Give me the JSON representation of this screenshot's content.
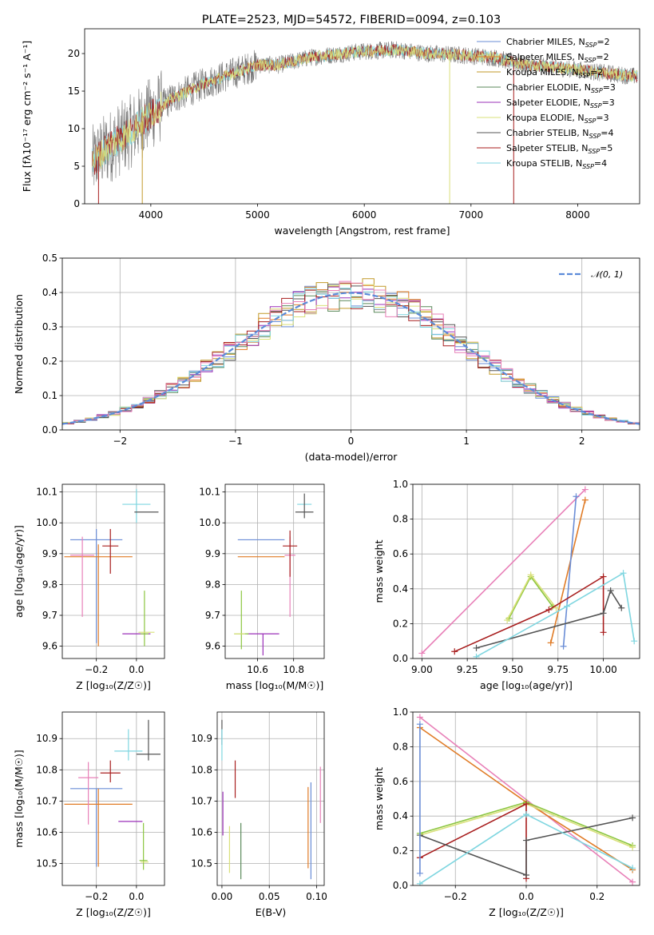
{
  "colors": {
    "Chabrier MILES": "#6a8dd6",
    "Salpeter MILES": "#e07b26",
    "Kroupa MILES": "#c29a2a",
    "Chabrier ELODIE": "#5b8a5b",
    "Salpeter ELODIE": "#9b30b8",
    "Kroupa ELODIE": "#d9e07a",
    "Chabrier STELIB": "#555555",
    "Salpeter STELIB": "#a81e1e",
    "Kroupa STELIB": "#7fd6e0",
    "pink": "#e880b8",
    "green": "#8cc63f",
    "normal": "#5b8bd9"
  },
  "chart_data": [
    {
      "id": "spectrum",
      "type": "line",
      "title": "PLATE=2523, MJD=54572, FIBERID=0094, z=0.103",
      "xlabel": "wavelength [Angstrom, rest frame]",
      "ylabel": "Flux [fλ10⁻¹⁷ erg cm⁻² s⁻¹ A⁻¹]",
      "xlim": [
        3380,
        8580
      ],
      "ylim": [
        0,
        23.3
      ],
      "xticks": [
        4000,
        5000,
        6000,
        7000,
        8000
      ],
      "yticks": [
        0,
        5,
        10,
        15,
        20
      ],
      "grid": false,
      "legend_position": "upper-right",
      "legend": [
        {
          "label": "Chabrier MILES, N",
          "sub": "SSP",
          "suffix": "=2"
        },
        {
          "label": "Salpeter MILES, N",
          "sub": "SSP",
          "suffix": "=2"
        },
        {
          "label": "Kroupa MILES, N",
          "sub": "SSP",
          "suffix": "=2"
        },
        {
          "label": "Chabrier ELODIE, N",
          "sub": "SSP",
          "suffix": "=3"
        },
        {
          "label": "Salpeter ELODIE, N",
          "sub": "SSP",
          "suffix": "=3"
        },
        {
          "label": "Kroupa ELODIE, N",
          "sub": "SSP",
          "suffix": "=3"
        },
        {
          "label": "Chabrier STELIB, N",
          "sub": "SSP",
          "suffix": "=4"
        },
        {
          "label": "Salpeter STELIB, N",
          "sub": "SSP",
          "suffix": "=5"
        },
        {
          "label": "Kroupa STELIB, N",
          "sub": "SSP",
          "suffix": "=4"
        }
      ],
      "continuum": [
        [
          3450,
          5.5
        ],
        [
          3600,
          7.5
        ],
        [
          3800,
          9.5
        ],
        [
          4000,
          12.0
        ],
        [
          4200,
          14.0
        ],
        [
          4500,
          16.0
        ],
        [
          4800,
          17.5
        ],
        [
          5000,
          18.5
        ],
        [
          5200,
          18.5
        ],
        [
          5500,
          19.5
        ],
        [
          5800,
          20.0
        ],
        [
          6000,
          20.3
        ],
        [
          6300,
          20.5
        ],
        [
          6600,
          20.0
        ],
        [
          6900,
          19.8
        ],
        [
          7200,
          19.5
        ],
        [
          7500,
          18.5
        ],
        [
          7900,
          18.0
        ],
        [
          8200,
          17.5
        ],
        [
          8500,
          17.0
        ]
      ]
    },
    {
      "id": "residuals",
      "type": "histogram",
      "xlabel": "(data-model)/error",
      "ylabel": "Normed distribution",
      "xlim": [
        -2.5,
        2.5
      ],
      "ylim": [
        0,
        0.5
      ],
      "xticks": [
        -2,
        -1,
        0,
        1,
        2
      ],
      "yticks": [
        0.0,
        0.1,
        0.2,
        0.3,
        0.4,
        0.5
      ],
      "grid": true,
      "bin_width": 0.1,
      "legend_position": "upper-right",
      "legend": [
        {
          "label": "𝒩(0, 1)"
        }
      ]
    },
    {
      "id": "age-vs-Z",
      "type": "scatter",
      "xlabel": "Z [log₁₀(Z/Z☉)]",
      "ylabel": "age  [log₁₀(age/yr)]",
      "xlim": [
        -0.37,
        0.14
      ],
      "ylim": [
        9.56,
        10.125
      ],
      "xticks": [
        -0.2,
        0.0
      ],
      "yticks": [
        9.6,
        9.7,
        9.8,
        9.9,
        10.0,
        10.1
      ],
      "grid": true,
      "points": [
        {
          "c": "Chabrier MILES",
          "x": -0.2,
          "xerr": 0.13,
          "y": 9.945,
          "yerr": [
            0.335,
            0.035
          ]
        },
        {
          "c": "Salpeter MILES",
          "x": -0.19,
          "xerr": 0.17,
          "y": 9.89,
          "yerr": [
            0.29,
            0.04
          ]
        },
        {
          "c": "pink",
          "x": -0.27,
          "xerr": 0.06,
          "y": 9.895,
          "yerr": [
            0.2,
            0.06
          ]
        },
        {
          "c": "Salpeter STELIB",
          "x": -0.13,
          "xerr": 0.04,
          "y": 9.925,
          "yerr": [
            0.09,
            0.055
          ]
        },
        {
          "c": "Salpeter ELODIE",
          "x": 0.0,
          "xerr": 0.07,
          "y": 9.64,
          "yerr": [
            0.0,
            0.0
          ]
        },
        {
          "c": "green",
          "x": 0.04,
          "xerr": 0.02,
          "y": 9.64,
          "yerr": [
            0.04,
            0.14
          ]
        },
        {
          "c": "Kroupa ELODIE",
          "x": 0.05,
          "xerr": 0.04,
          "y": 9.645,
          "yerr": [
            0.0,
            0.0
          ]
        },
        {
          "c": "Kroupa STELIB",
          "x": 0.0,
          "xerr": 0.07,
          "y": 10.06,
          "yerr": [
            0.06,
            0.05
          ]
        },
        {
          "c": "Chabrier STELIB",
          "x": 0.05,
          "xerr": 0.06,
          "y": 10.035,
          "yerr": [
            0.0,
            0.0
          ]
        }
      ]
    },
    {
      "id": "age-vs-mass",
      "type": "scatter",
      "xlabel": "mass [log₁₀(M/M☉)]",
      "ylabel": "",
      "xlim": [
        10.42,
        10.97
      ],
      "ylim": [
        9.56,
        10.125
      ],
      "xticks": [
        10.6,
        10.8
      ],
      "yticks": [
        9.6,
        9.7,
        9.8,
        9.9,
        10.0,
        10.1
      ],
      "grid": true,
      "points": [
        {
          "c": "Chabrier MILES",
          "x": 10.62,
          "xerr": 0.13,
          "y": 9.945,
          "yerr": [
            0.0,
            0.0
          ]
        },
        {
          "c": "Salpeter MILES",
          "x": 10.62,
          "xerr": 0.13,
          "y": 9.89,
          "yerr": [
            0.0,
            0.0
          ]
        },
        {
          "c": "pink",
          "x": 10.78,
          "xerr": 0.03,
          "y": 9.895,
          "yerr": [
            0.2,
            0.06
          ]
        },
        {
          "c": "Salpeter STELIB",
          "x": 10.78,
          "xerr": 0.04,
          "y": 9.925,
          "yerr": [
            0.1,
            0.05
          ]
        },
        {
          "c": "Salpeter ELODIE",
          "x": 10.63,
          "xerr": 0.09,
          "y": 9.64,
          "yerr": [
            0.07,
            0.0
          ]
        },
        {
          "c": "green",
          "x": 10.51,
          "xerr": 0.04,
          "y": 9.64,
          "yerr": [
            0.05,
            0.14
          ]
        },
        {
          "c": "Kroupa ELODIE",
          "x": 10.5,
          "xerr": 0.03,
          "y": 9.64,
          "yerr": [
            0.0,
            0.0
          ]
        },
        {
          "c": "Kroupa STELIB",
          "x": 10.86,
          "xerr": 0.04,
          "y": 10.06,
          "yerr": [
            0.0,
            0.0
          ]
        },
        {
          "c": "Chabrier STELIB",
          "x": 10.86,
          "xerr": 0.05,
          "y": 10.035,
          "yerr": [
            0.02,
            0.06
          ]
        }
      ]
    },
    {
      "id": "weight-vs-age",
      "type": "line",
      "xlabel": "age  [log₁₀(age/yr)]",
      "ylabel": "mass weight",
      "xlim": [
        8.95,
        10.2
      ],
      "ylim": [
        0,
        1.0
      ],
      "xticks": [
        9.0,
        9.25,
        9.5,
        9.75,
        10.0
      ],
      "yticks": [
        0.0,
        0.2,
        0.4,
        0.6,
        0.8,
        1.0
      ],
      "grid": true,
      "series": [
        {
          "c": "pink",
          "points": [
            [
              9.0,
              0.03
            ],
            [
              9.9,
              0.97
            ]
          ]
        },
        {
          "c": "Salpeter MILES",
          "points": [
            [
              9.71,
              0.09
            ],
            [
              9.9,
              0.91
            ]
          ]
        },
        {
          "c": "Chabrier MILES",
          "points": [
            [
              9.78,
              0.07
            ],
            [
              9.85,
              0.93
            ]
          ]
        },
        {
          "c": "green",
          "points": [
            [
              9.48,
              0.23
            ],
            [
              9.6,
              0.47
            ],
            [
              9.72,
              0.3
            ]
          ]
        },
        {
          "c": "Kroupa ELODIE",
          "points": [
            [
              9.47,
              0.22
            ],
            [
              9.6,
              0.48
            ],
            [
              9.74,
              0.29
            ]
          ]
        },
        {
          "c": "Salpeter STELIB",
          "points": [
            [
              9.18,
              0.04
            ],
            [
              9.7,
              0.28
            ],
            [
              10.0,
              0.47
            ],
            [
              10.0,
              0.15
            ]
          ]
        },
        {
          "c": "Chabrier STELIB",
          "points": [
            [
              9.3,
              0.06
            ],
            [
              10.0,
              0.26
            ],
            [
              10.04,
              0.39
            ],
            [
              10.1,
              0.29
            ]
          ]
        },
        {
          "c": "Kroupa STELIB",
          "points": [
            [
              9.3,
              0.01
            ],
            [
              9.8,
              0.3
            ],
            [
              10.11,
              0.49
            ],
            [
              10.17,
              0.1
            ]
          ]
        }
      ]
    },
    {
      "id": "mass-vs-Z",
      "type": "scatter",
      "xlabel": "Z [log₁₀(Z/Z☉)]",
      "ylabel": "mass [log₁₀(M/M☉)]",
      "xlim": [
        -0.37,
        0.14
      ],
      "ylim": [
        10.43,
        10.985
      ],
      "xticks": [
        -0.2,
        0.0
      ],
      "yticks": [
        10.5,
        10.6,
        10.7,
        10.8,
        10.9
      ],
      "grid": true,
      "points": [
        {
          "c": "Chabrier MILES",
          "x": -0.2,
          "xerr": 0.13,
          "y": 10.74,
          "yerr": [
            0.25,
            0.0
          ]
        },
        {
          "c": "Salpeter MILES",
          "x": -0.19,
          "xerr": 0.17,
          "y": 10.69,
          "yerr": [
            0.2,
            0.05
          ]
        },
        {
          "c": "pink",
          "x": -0.24,
          "xerr": 0.05,
          "y": 10.775,
          "yerr": [
            0.15,
            0.05
          ]
        },
        {
          "c": "Salpeter STELIB",
          "x": -0.13,
          "xerr": 0.05,
          "y": 10.79,
          "yerr": [
            0.03,
            0.04
          ]
        },
        {
          "c": "Salpeter ELODIE",
          "x": -0.03,
          "xerr": 0.06,
          "y": 10.635,
          "yerr": [
            0.0,
            0.0
          ]
        },
        {
          "c": "green",
          "x": 0.035,
          "xerr": 0.02,
          "y": 10.51,
          "yerr": [
            0.03,
            0.12
          ]
        },
        {
          "c": "Kroupa ELODIE",
          "x": 0.04,
          "xerr": 0.02,
          "y": 10.505,
          "yerr": [
            0.0,
            0.0
          ]
        },
        {
          "c": "Kroupa STELIB",
          "x": -0.04,
          "xerr": 0.07,
          "y": 10.86,
          "yerr": [
            0.03,
            0.07
          ]
        },
        {
          "c": "Chabrier STELIB",
          "x": 0.06,
          "xerr": 0.06,
          "y": 10.85,
          "yerr": [
            0.02,
            0.11
          ]
        }
      ]
    },
    {
      "id": "mass-vs-EBV",
      "type": "scatter",
      "xlabel": "E(B-V)",
      "ylabel": "",
      "xlim": [
        -0.005,
        0.108
      ],
      "ylim": [
        10.43,
        10.985
      ],
      "xticks": [
        0.0,
        0.05,
        0.1
      ],
      "yticks": [
        10.5,
        10.6,
        10.7,
        10.8,
        10.9
      ],
      "grid": true,
      "points": [
        {
          "c": "Chabrier STELIB",
          "x": 0.0,
          "xerr": 0.0,
          "y": 10.92,
          "yerr": [
            0.04,
            0.04
          ]
        },
        {
          "c": "Kroupa STELIB",
          "x": 0.0,
          "xerr": 0.0,
          "y": 10.86,
          "yerr": [
            0.03,
            0.07
          ]
        },
        {
          "c": "Salpeter ELODIE",
          "x": 0.001,
          "xerr": 0.0,
          "y": 10.66,
          "yerr": [
            0.07,
            0.07
          ]
        },
        {
          "c": "Kroupa ELODIE",
          "x": 0.008,
          "xerr": 0.0,
          "y": 10.54,
          "yerr": [
            0.07,
            0.08
          ]
        },
        {
          "c": "Salpeter STELIB",
          "x": 0.014,
          "xerr": 0.0,
          "y": 10.77,
          "yerr": [
            0.06,
            0.06
          ]
        },
        {
          "c": "Chabrier ELODIE",
          "x": 0.02,
          "xerr": 0.0,
          "y": 10.54,
          "yerr": [
            0.09,
            0.09
          ]
        },
        {
          "c": "Salpeter MILES",
          "x": 0.091,
          "xerr": 0.0,
          "y": 10.615,
          "yerr": [
            0.13,
            0.13
          ]
        },
        {
          "c": "Chabrier MILES",
          "x": 0.094,
          "xerr": 0.0,
          "y": 10.605,
          "yerr": [
            0.155,
            0.155
          ]
        },
        {
          "c": "pink",
          "x": 0.104,
          "xerr": 0.0,
          "y": 10.72,
          "yerr": [
            0.09,
            0.09
          ]
        }
      ]
    },
    {
      "id": "weight-vs-Z",
      "type": "line",
      "xlabel": "Z [log₁₀(Z/Z☉)]",
      "ylabel": "mass weight",
      "xlim": [
        -0.32,
        0.32
      ],
      "ylim": [
        0,
        1.0
      ],
      "xticks": [
        -0.2,
        0.0,
        0.2
      ],
      "yticks": [
        0.0,
        0.2,
        0.4,
        0.6,
        0.8,
        1.0
      ],
      "grid": true,
      "series": [
        {
          "c": "pink",
          "points": [
            [
              -0.3,
              0.97
            ],
            [
              0.3,
              0.02
            ]
          ]
        },
        {
          "c": "Salpeter MILES",
          "points": [
            [
              -0.3,
              0.91
            ],
            [
              0.0,
              0.48
            ],
            [
              0.3,
              0.09
            ]
          ]
        },
        {
          "c": "green",
          "points": [
            [
              -0.3,
              0.3
            ],
            [
              0.0,
              0.48
            ],
            [
              0.3,
              0.23
            ]
          ]
        },
        {
          "c": "Kroupa ELODIE",
          "points": [
            [
              -0.3,
              0.29
            ],
            [
              0.0,
              0.47
            ],
            [
              0.3,
              0.22
            ]
          ]
        },
        {
          "c": "Salpeter STELIB",
          "points": [
            [
              -0.3,
              0.16
            ],
            [
              0.0,
              0.47
            ],
            [
              0.0,
              0.04
            ]
          ]
        },
        {
          "c": "Chabrier STELIB",
          "points": [
            [
              -0.3,
              0.29
            ],
            [
              0.0,
              0.06
            ],
            [
              0.0,
              0.26
            ],
            [
              0.3,
              0.39
            ]
          ]
        },
        {
          "c": "Kroupa STELIB",
          "points": [
            [
              -0.3,
              0.01
            ],
            [
              0.0,
              0.41
            ],
            [
              0.3,
              0.1
            ]
          ]
        },
        {
          "c": "Chabrier MILES",
          "points": [
            [
              -0.3,
              0.93
            ],
            [
              -0.3,
              0.07
            ]
          ]
        }
      ]
    }
  ]
}
